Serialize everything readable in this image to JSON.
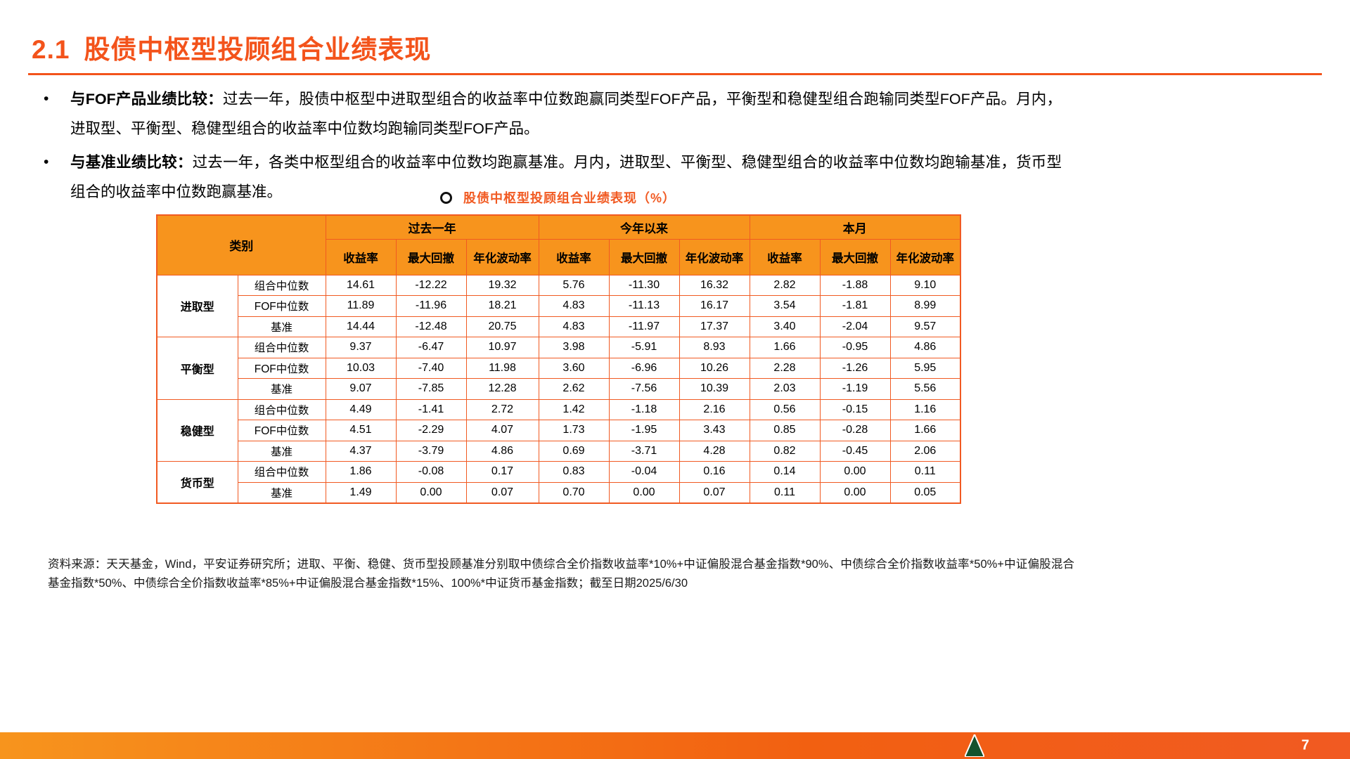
{
  "colors": {
    "accent": "#F15A22",
    "table_header_fill": "#F7941D",
    "title": "#F3531B",
    "bottom_bar": "#F26011",
    "logo_green": "#14522D"
  },
  "header": {
    "number": "2.1",
    "title": "股债中枢型投顾组合业绩表现"
  },
  "bullet_char": "•",
  "bullets": [
    {
      "lead": "与FOF产品业绩比较：",
      "text": "过去一年，股债中枢型中进取型组合的收益率中位数跑赢同类型FOF产品，平衡型和稳健型组合跑输同类型FOF产品。月内，进取型、平衡型、稳健型组合的收益率中位数均跑输同类型FOF产品。"
    },
    {
      "lead": "与基准业绩比较：",
      "text": "过去一年，各类中枢型组合的收益率中位数均跑赢基准。月内，进取型、平衡型、稳健型组合的收益率中位数均跑输基准，货币型组合的收益率中位数跑赢基准。"
    }
  ],
  "table": {
    "title": "股债中枢型投顾组合业绩表现（%）",
    "corner_label": "类别",
    "col_groups": [
      "过去一年",
      "今年以来",
      "本月"
    ],
    "sub_headers": [
      "收益率",
      "最大回撤",
      "年化波动率"
    ],
    "groups": [
      {
        "name": "进取型",
        "rows": [
          {
            "label": "组合中位数",
            "values": [
              "14.61",
              "-12.22",
              "19.32",
              "5.76",
              "-11.30",
              "16.32",
              "2.82",
              "-1.88",
              "9.10"
            ]
          },
          {
            "label": "FOF中位数",
            "values": [
              "11.89",
              "-11.96",
              "18.21",
              "4.83",
              "-11.13",
              "16.17",
              "3.54",
              "-1.81",
              "8.99"
            ]
          },
          {
            "label": "基准",
            "values": [
              "14.44",
              "-12.48",
              "20.75",
              "4.83",
              "-11.97",
              "17.37",
              "3.40",
              "-2.04",
              "9.57"
            ]
          }
        ]
      },
      {
        "name": "平衡型",
        "rows": [
          {
            "label": "组合中位数",
            "values": [
              "9.37",
              "-6.47",
              "10.97",
              "3.98",
              "-5.91",
              "8.93",
              "1.66",
              "-0.95",
              "4.86"
            ]
          },
          {
            "label": "FOF中位数",
            "values": [
              "10.03",
              "-7.40",
              "11.98",
              "3.60",
              "-6.96",
              "10.26",
              "2.28",
              "-1.26",
              "5.95"
            ]
          },
          {
            "label": "基准",
            "values": [
              "9.07",
              "-7.85",
              "12.28",
              "2.62",
              "-7.56",
              "10.39",
              "2.03",
              "-1.19",
              "5.56"
            ]
          }
        ]
      },
      {
        "name": "稳健型",
        "rows": [
          {
            "label": "组合中位数",
            "values": [
              "4.49",
              "-1.41",
              "2.72",
              "1.42",
              "-1.18",
              "2.16",
              "0.56",
              "-0.15",
              "1.16"
            ]
          },
          {
            "label": "FOF中位数",
            "values": [
              "4.51",
              "-2.29",
              "4.07",
              "1.73",
              "-1.95",
              "3.43",
              "0.85",
              "-0.28",
              "1.66"
            ]
          },
          {
            "label": "基准",
            "values": [
              "4.37",
              "-3.79",
              "4.86",
              "0.69",
              "-3.71",
              "4.28",
              "0.82",
              "-0.45",
              "2.06"
            ]
          }
        ]
      },
      {
        "name": "货币型",
        "rows": [
          {
            "label": "组合中位数",
            "values": [
              "1.86",
              "-0.08",
              "0.17",
              "0.83",
              "-0.04",
              "0.16",
              "0.14",
              "0.00",
              "0.11"
            ]
          },
          {
            "label": "基准",
            "values": [
              "1.49",
              "0.00",
              "0.07",
              "0.70",
              "0.00",
              "0.07",
              "0.11",
              "0.00",
              "0.05"
            ]
          }
        ]
      }
    ]
  },
  "footer": {
    "source": "资料来源：天天基金，Wind，平安证券研究所；进取、平衡、稳健、货币型投顾基准分别取中债综合全价指数收益率*10%+中证偏股混合基金指数*90%、中债综合全价指数收益率*50%+中证偏股混合基金指数*50%、中债综合全价指数收益率*85%+中证偏股混合基金指数*15%、100%*中证货币基金指数；截至日期2025/6/30"
  },
  "page_number": "7"
}
